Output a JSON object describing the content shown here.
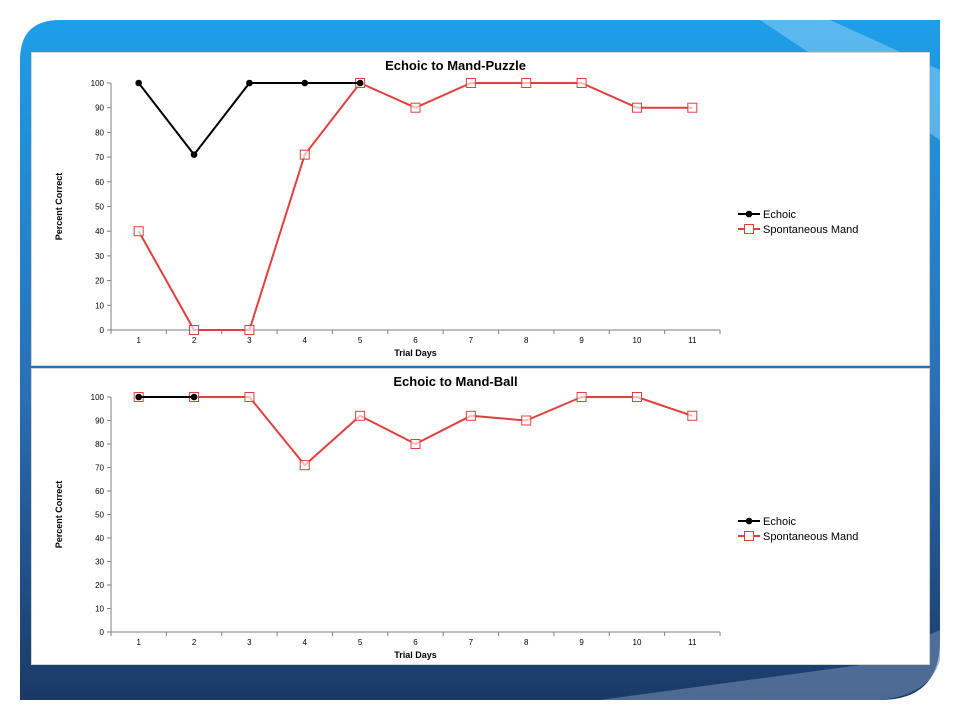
{
  "slide": {
    "colors": {
      "frame_top": "#1d9fe8",
      "frame_bottom": "#1a3a66",
      "accent_light": "#8ccdf6"
    }
  },
  "colors": {
    "echoic": "#000000",
    "spontaneous": "#e0403c",
    "axis": "#7f7f7f"
  },
  "chart_data": [
    {
      "type": "line",
      "title": "Echoic to Mand-Puzzle",
      "xlabel": "Trial Days",
      "ylabel": "Percent Correct",
      "categories": [
        "1",
        "2",
        "3",
        "4",
        "5",
        "6",
        "7",
        "8",
        "9",
        "10",
        "11"
      ],
      "ylim": [
        0,
        100
      ],
      "yticks": [
        "0",
        "10",
        "20",
        "30",
        "40",
        "50",
        "60",
        "70",
        "80",
        "90",
        "100"
      ],
      "grid": false,
      "legend_position": "right",
      "series": [
        {
          "name": "Echoic",
          "marker": "circle",
          "values": [
            100,
            71,
            100,
            100,
            100,
            null,
            null,
            null,
            null,
            null,
            null
          ]
        },
        {
          "name": "Spontaneous Mand",
          "marker": "square",
          "values": [
            40,
            0,
            0,
            71,
            100,
            90,
            100,
            100,
            100,
            90,
            90
          ]
        }
      ]
    },
    {
      "type": "line",
      "title": "Echoic to Mand-Ball",
      "xlabel": "Trial Days",
      "ylabel": "Percent Correct",
      "categories": [
        "1",
        "2",
        "3",
        "4",
        "5",
        "6",
        "7",
        "8",
        "9",
        "10",
        "11"
      ],
      "ylim": [
        0,
        100
      ],
      "yticks": [
        "0",
        "10",
        "20",
        "30",
        "40",
        "50",
        "60",
        "70",
        "80",
        "90",
        "100"
      ],
      "grid": false,
      "legend_position": "right",
      "series": [
        {
          "name": "Echoic",
          "marker": "circle",
          "values": [
            100,
            100,
            null,
            null,
            null,
            null,
            null,
            null,
            null,
            null,
            null
          ]
        },
        {
          "name": "Spontaneous Mand",
          "marker": "square",
          "values": [
            100,
            100,
            100,
            71,
            92,
            80,
            92,
            90,
            100,
            100,
            92
          ]
        }
      ]
    }
  ]
}
